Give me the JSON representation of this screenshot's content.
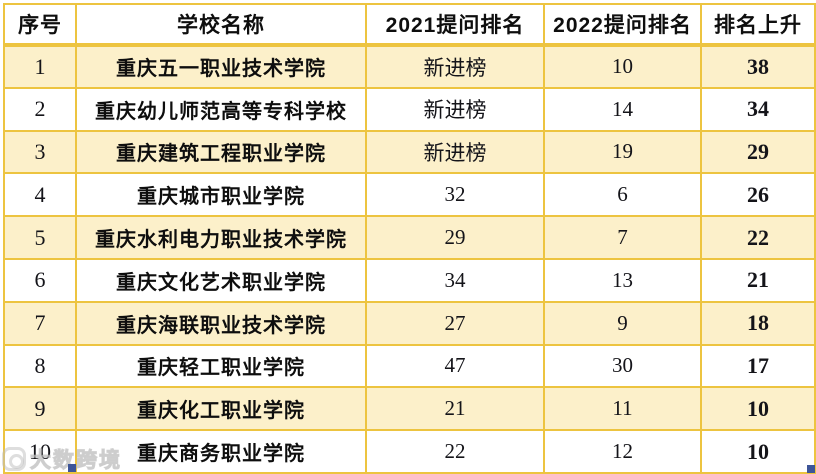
{
  "chart_data": {
    "type": "table",
    "columns": [
      {
        "key": "index",
        "label": "序号"
      },
      {
        "key": "school",
        "label": "学校名称"
      },
      {
        "key": "rank2021",
        "label": "2021提问排名"
      },
      {
        "key": "rank2022",
        "label": "2022提问排名"
      },
      {
        "key": "rise",
        "label": "排名上升"
      }
    ],
    "rows": [
      {
        "index": "1",
        "school": "重庆五一职业技术学院",
        "rank2021": "新进榜",
        "rank2022": "10",
        "rise": "38"
      },
      {
        "index": "2",
        "school": "重庆幼儿师范高等专科学校",
        "rank2021": "新进榜",
        "rank2022": "14",
        "rise": "34"
      },
      {
        "index": "3",
        "school": "重庆建筑工程职业学院",
        "rank2021": "新进榜",
        "rank2022": "19",
        "rise": "29"
      },
      {
        "index": "4",
        "school": "重庆城市职业学院",
        "rank2021": "32",
        "rank2022": "6",
        "rise": "26"
      },
      {
        "index": "5",
        "school": "重庆水利电力职业技术学院",
        "rank2021": "29",
        "rank2022": "7",
        "rise": "22"
      },
      {
        "index": "6",
        "school": "重庆文化艺术职业学院",
        "rank2021": "34",
        "rank2022": "13",
        "rise": "21"
      },
      {
        "index": "7",
        "school": "重庆海联职业技术学院",
        "rank2021": "27",
        "rank2022": "9",
        "rise": "18"
      },
      {
        "index": "8",
        "school": "重庆轻工职业学院",
        "rank2021": "47",
        "rank2022": "30",
        "rise": "17"
      },
      {
        "index": "9",
        "school": "重庆化工职业学院",
        "rank2021": "21",
        "rank2022": "11",
        "rise": "10"
      },
      {
        "index": "10",
        "school": "重庆商务职业学院",
        "rank2021": "22",
        "rank2022": "12",
        "rise": "10"
      }
    ],
    "layout": {
      "zebra_rows": "odd rows cream, even rows white",
      "grid": true
    }
  },
  "watermark": {
    "text": "大数跨境"
  },
  "colors": {
    "border_gold": "#edc440",
    "row_cream": "#fcf0ca",
    "row_white": "#ffffff",
    "text_dark": "#141419",
    "handle_blue": "#3d5598"
  }
}
